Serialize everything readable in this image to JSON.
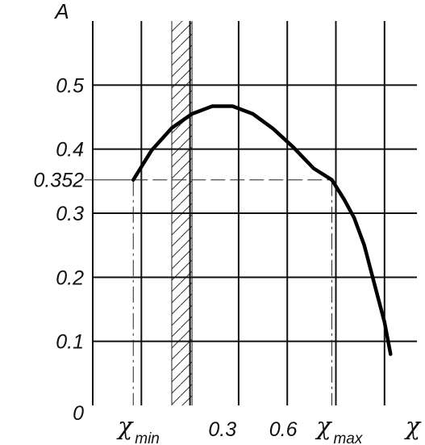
{
  "chart_data": {
    "type": "line",
    "title": "",
    "ylabel": "A",
    "xlabel": "χ",
    "xlim": [
      -0.34,
      1.26
    ],
    "ylim": [
      0,
      0.6
    ],
    "x_gridlines": [
      -0.34,
      -0.1,
      0.14,
      0.38,
      0.62,
      0.86,
      1.1
    ],
    "y_gridlines": [
      0.1,
      0.2,
      0.3,
      0.4,
      0.5
    ],
    "y_ticks": [
      {
        "value": 0,
        "label": "0"
      },
      {
        "value": 0.1,
        "label": "0.1"
      },
      {
        "value": 0.2,
        "label": "0.2"
      },
      {
        "value": 0.3,
        "label": "0.3"
      },
      {
        "value": 0.352,
        "label": "0.352"
      },
      {
        "value": 0.4,
        "label": "0.4"
      },
      {
        "value": 0.5,
        "label": "0.5"
      }
    ],
    "x_ticks": [
      {
        "value": 0.3,
        "label": "0.3"
      },
      {
        "value": 0.6,
        "label": "0.6"
      }
    ],
    "markers": {
      "chi_min": {
        "symbol": "χ",
        "sub": "min",
        "x": -0.14
      },
      "chi_max": {
        "symbol": "χ",
        "sub": "max",
        "x": 0.84
      }
    },
    "reference_level": 0.352,
    "hatched_band": [
      0.05,
      0.15
    ],
    "series": [
      {
        "points": [
          [
            -0.14,
            0.352
          ],
          [
            -0.05,
            0.398
          ],
          [
            0.05,
            0.433
          ],
          [
            0.15,
            0.455
          ],
          [
            0.25,
            0.467
          ],
          [
            0.35,
            0.467
          ],
          [
            0.45,
            0.455
          ],
          [
            0.55,
            0.432
          ],
          [
            0.65,
            0.403
          ],
          [
            0.75,
            0.37
          ],
          [
            0.84,
            0.352
          ],
          [
            0.9,
            0.322
          ],
          [
            0.95,
            0.293
          ],
          [
            1.0,
            0.25
          ],
          [
            1.05,
            0.19
          ],
          [
            1.1,
            0.13
          ],
          [
            1.13,
            0.08
          ]
        ]
      }
    ]
  }
}
